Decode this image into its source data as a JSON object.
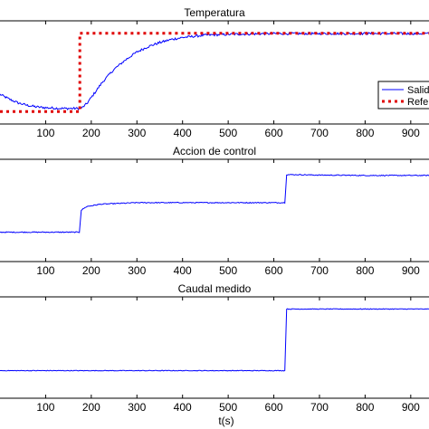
{
  "chart_data": [
    {
      "type": "line",
      "title": "Temperatura",
      "xlabel": "",
      "xlim": [
        0,
        940
      ],
      "ylim": [
        0,
        1
      ],
      "xticks": [
        100,
        200,
        300,
        400,
        500,
        600,
        700,
        800,
        900
      ],
      "legend": {
        "position": "right",
        "entries": [
          "Salida",
          "Referencia"
        ]
      },
      "series": [
        {
          "name": "Salida",
          "color": "#0000ff",
          "style": "solid",
          "x": [
            0,
            20,
            40,
            60,
            80,
            100,
            120,
            140,
            160,
            175,
            180,
            190,
            200,
            225,
            250,
            275,
            300,
            325,
            350,
            375,
            400,
            425,
            450,
            500,
            550,
            600,
            650,
            700,
            750,
            800,
            850,
            900,
            940
          ],
          "y": [
            0.22,
            0.16,
            0.11,
            0.08,
            0.06,
            0.05,
            0.045,
            0.04,
            0.04,
            0.04,
            0.05,
            0.1,
            0.18,
            0.38,
            0.54,
            0.66,
            0.76,
            0.83,
            0.88,
            0.92,
            0.945,
            0.96,
            0.975,
            0.985,
            0.99,
            0.995,
            0.995,
            0.995,
            0.995,
            0.995,
            0.995,
            0.995,
            0.995
          ],
          "noise": 0.015
        },
        {
          "name": "Referencia",
          "color": "#e00000",
          "style": "dotted",
          "x": [
            0,
            175,
            175,
            940
          ],
          "y": [
            0.0,
            0.0,
            1.0,
            1.0
          ]
        }
      ]
    },
    {
      "type": "line",
      "title": "Accion de control",
      "xlabel": "",
      "xlim": [
        0,
        940
      ],
      "ylim": [
        0,
        1
      ],
      "xticks": [
        100,
        200,
        300,
        400,
        500,
        600,
        700,
        800,
        900
      ],
      "series": [
        {
          "name": "",
          "color": "#0000ff",
          "style": "solid",
          "x": [
            0,
            175,
            177,
            190,
            220,
            260,
            300,
            350,
            400,
            450,
            500,
            550,
            600,
            625,
            627,
            650,
            700,
            800,
            940
          ],
          "y": [
            0.22,
            0.22,
            0.5,
            0.55,
            0.58,
            0.59,
            0.6,
            0.6,
            0.6,
            0.6,
            0.6,
            0.6,
            0.6,
            0.6,
            0.96,
            0.96,
            0.955,
            0.95,
            0.95
          ],
          "noise": 0.006
        }
      ]
    },
    {
      "type": "line",
      "title": "Caudal medido",
      "xlabel": "t(s)",
      "xlim": [
        0,
        940
      ],
      "ylim": [
        0,
        1
      ],
      "xticks": [
        100,
        200,
        300,
        400,
        500,
        600,
        700,
        800,
        900
      ],
      "series": [
        {
          "name": "",
          "color": "#0000ff",
          "style": "solid",
          "x": [
            0,
            625,
            627,
            940
          ],
          "y": [
            0.2,
            0.2,
            1.0,
            1.0
          ],
          "noise": 0.004
        }
      ]
    }
  ]
}
